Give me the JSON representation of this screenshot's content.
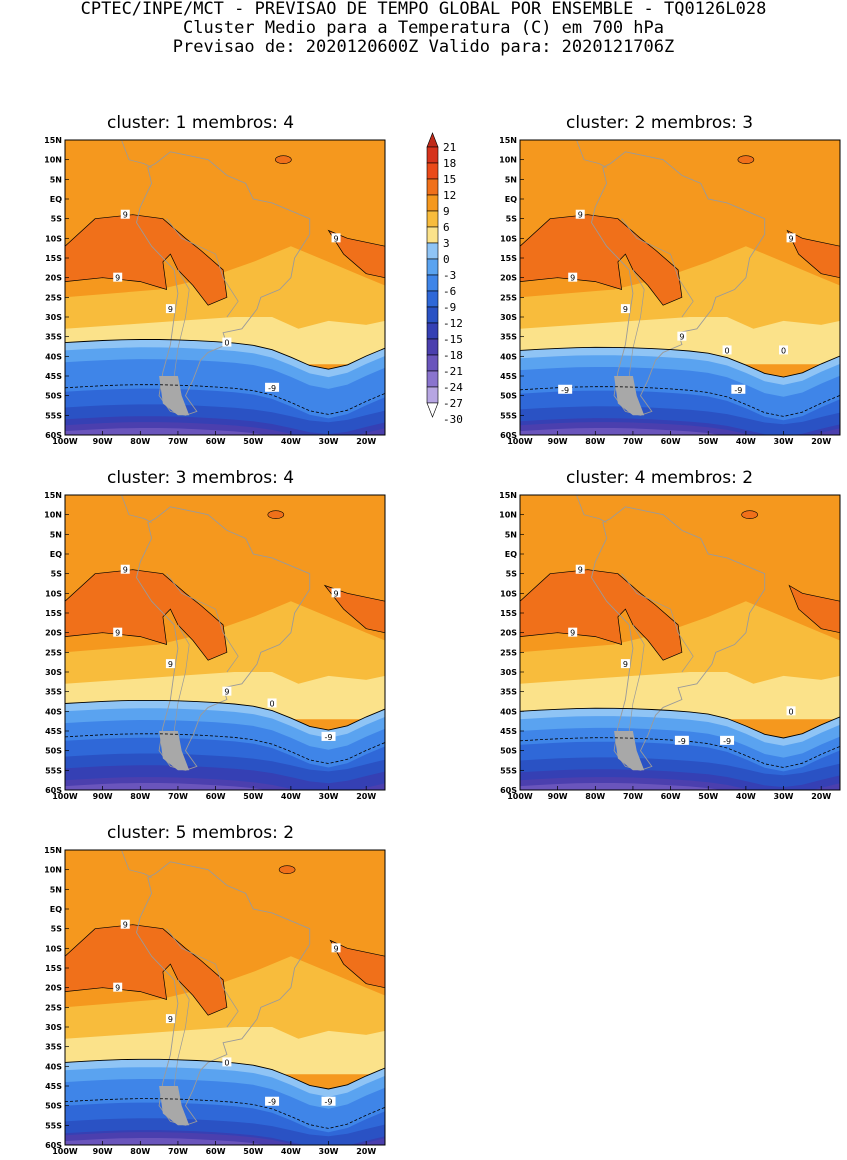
{
  "header": {
    "line1": "CPTEC/INPE/MCT - PREVISAO DE TEMPO GLOBAL POR ENSEMBLE - TQ0126L028",
    "line2": "Cluster Medio para a Temperatura (C) em 700 hPa",
    "line3": "Previsao de: 2020120600Z   Valido para: 2020121706Z"
  },
  "y_ticks": [
    "15N",
    "10N",
    "5N",
    "EQ",
    "5S",
    "10S",
    "15S",
    "20S",
    "25S",
    "30S",
    "35S",
    "40S",
    "45S",
    "50S",
    "55S",
    "60S"
  ],
  "x_ticks": [
    "100W",
    "90W",
    "80W",
    "70W",
    "60W",
    "50W",
    "40W",
    "30W",
    "20W"
  ],
  "colorbar": {
    "labels": [
      "21",
      "18",
      "15",
      "12",
      "9",
      "6",
      "3",
      "0",
      "-3",
      "-6",
      "-9",
      "-12",
      "-15",
      "-18",
      "-21",
      "-24",
      "-27",
      "-30"
    ],
    "colors": [
      "#bf2a1a",
      "#d6331c",
      "#ea4a1a",
      "#f0701a",
      "#f5981e",
      "#f8bc3c",
      "#fbe28a",
      "#8fc4f5",
      "#5aa3f0",
      "#3f85e8",
      "#2f68d8",
      "#2a52c4",
      "#3540b4",
      "#4b3fae",
      "#6a55bc",
      "#8a74ce",
      "#b7a6e2",
      "#ffffff"
    ]
  },
  "panels": [
    {
      "title": "cluster: 1   membros: 4",
      "labels": [
        "9",
        "9",
        "9",
        "9",
        "0",
        "-9"
      ]
    },
    {
      "title": "cluster: 2   membros: 3",
      "labels": [
        "9",
        "9",
        "9",
        "9",
        "9",
        "0",
        "0",
        "-9",
        "-9"
      ]
    },
    {
      "title": "cluster: 3   membros: 4",
      "labels": [
        "9",
        "9",
        "9",
        "9",
        "9",
        "0",
        "-9"
      ]
    },
    {
      "title": "cluster: 4   membros: 2",
      "labels": [
        "9",
        "9",
        "9",
        "0",
        "-9",
        "-9"
      ]
    },
    {
      "title": "cluster: 5   membros: 2",
      "labels": [
        "9",
        "9",
        "9",
        "9",
        "0",
        "-9",
        "-9"
      ]
    }
  ]
}
